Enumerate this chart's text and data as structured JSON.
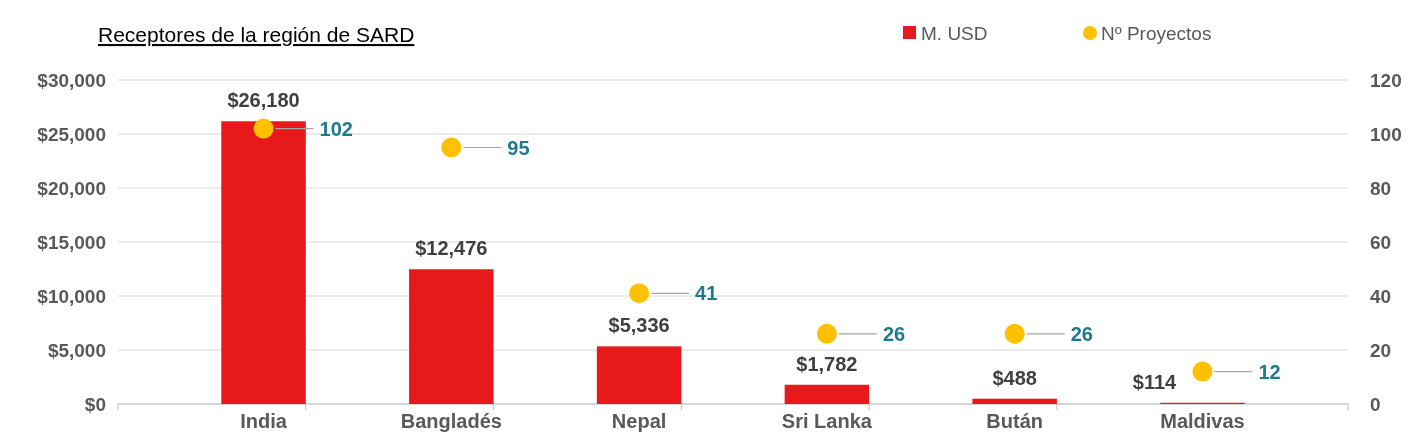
{
  "chart_data": {
    "type": "bar",
    "title": "Receptores de la región de SARD",
    "categories": [
      "India",
      "Bangladés",
      "Nepal",
      "Sri Lanka",
      "Bután",
      "Maldivas"
    ],
    "series": [
      {
        "name": "M. USD",
        "type": "bar",
        "color": "#e8191a",
        "values": [
          26180,
          12476,
          5336,
          1782,
          488,
          114
        ],
        "value_labels": [
          "$26,180",
          "$12,476",
          "$5,336",
          "$1,782",
          "$488",
          "$114"
        ]
      },
      {
        "name": "Nº Proyectos",
        "type": "scatter",
        "axis": "y2",
        "color": "#ffc000",
        "values": [
          102,
          95,
          41,
          26,
          26,
          12
        ],
        "value_labels": [
          "102",
          "95",
          "41",
          "26",
          "26",
          "12"
        ]
      }
    ],
    "ylim": [
      0,
      30000
    ],
    "yticks": [
      {
        "value": 0,
        "label": "$0"
      },
      {
        "value": 5000,
        "label": "$5,000"
      },
      {
        "value": 10000,
        "label": "$10,000"
      },
      {
        "value": 15000,
        "label": "$15,000"
      },
      {
        "value": 20000,
        "label": "$20,000"
      },
      {
        "value": 25000,
        "label": "$25,000"
      },
      {
        "value": 30000,
        "label": "$30,000"
      }
    ],
    "y2lim": [
      0,
      120
    ],
    "y2ticks": [
      0,
      20,
      40,
      60,
      80,
      100,
      120
    ],
    "grid": "y",
    "legend": "top right",
    "marker": "circle"
  }
}
